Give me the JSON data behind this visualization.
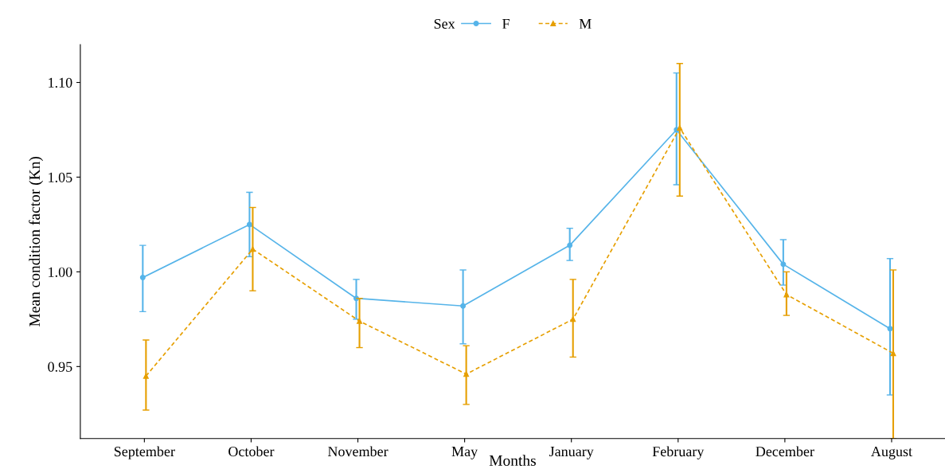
{
  "chart_data": {
    "type": "line",
    "xlabel": "Months",
    "ylabel": "Mean condition factor (Kn)",
    "legend_title": "Sex",
    "legend": "top",
    "grid": false,
    "categories": [
      "September",
      "October",
      "November",
      "May",
      "January",
      "February",
      "December",
      "August"
    ],
    "ylim": [
      0.912,
      1.12
    ],
    "yticks": [
      {
        "value": 0.95,
        "label": "0.95"
      },
      {
        "value": 1.0,
        "label": "1.00"
      },
      {
        "value": 1.05,
        "label": "1.05"
      },
      {
        "value": 1.1,
        "label": "1.10"
      }
    ],
    "series": [
      {
        "name": "F",
        "color": "#56b4e9",
        "marker": "circle",
        "line_style": "solid",
        "values": [
          0.997,
          1.025,
          0.986,
          0.982,
          1.014,
          1.075,
          1.004,
          0.97
        ],
        "errors": [
          [
            0.979,
            1.014
          ],
          [
            1.008,
            1.042
          ],
          [
            0.975,
            0.996
          ],
          [
            0.962,
            1.001
          ],
          [
            1.006,
            1.023
          ],
          [
            1.046,
            1.105
          ],
          [
            0.993,
            1.017
          ],
          [
            0.935,
            1.007
          ]
        ]
      },
      {
        "name": "M",
        "color": "#e69f00",
        "marker": "triangle",
        "line_style": "dashed",
        "values": [
          0.945,
          1.012,
          0.974,
          0.946,
          0.975,
          1.076,
          0.988,
          0.957
        ],
        "errors": [
          [
            0.927,
            0.964
          ],
          [
            0.99,
            1.034
          ],
          [
            0.96,
            0.986
          ],
          [
            0.93,
            0.961
          ],
          [
            0.955,
            0.996
          ],
          [
            1.04,
            1.11
          ],
          [
            0.977,
            1.0
          ],
          [
            0.912,
            1.001
          ]
        ]
      }
    ]
  }
}
